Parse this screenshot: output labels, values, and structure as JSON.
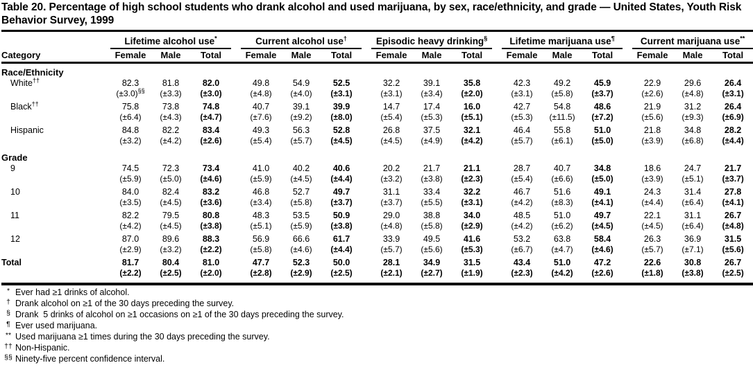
{
  "title": "Table 20. Percentage of high school students who drank alcohol and used marijuana, by sex, race/ethnicity, and grade — United States, Youth Risk Behavior Survey, 1999",
  "table": {
    "category_header": "Category",
    "sub_columns": [
      "Female",
      "Male",
      "Total"
    ],
    "groups": [
      {
        "label": "Lifetime alcohol use",
        "marker": "*"
      },
      {
        "label": "Current alcohol use",
        "marker": "†"
      },
      {
        "label": "Episodic heavy drinking",
        "marker": "§"
      },
      {
        "label": "Lifetime marijuana use",
        "marker": "¶"
      },
      {
        "label": "Current marijuana use",
        "marker": "**"
      }
    ],
    "sections": [
      {
        "heading": "Race/Ethnicity",
        "rows": [
          {
            "label": "White",
            "label_sup": "††",
            "ci_sup": "§§",
            "values": [
              "82.3",
              "81.8",
              "82.0",
              "49.8",
              "54.9",
              "52.5",
              "32.2",
              "39.1",
              "35.8",
              "42.3",
              "49.2",
              "45.9",
              "22.9",
              "29.6",
              "26.4"
            ],
            "ci": [
              "(±3.0)",
              "(±3.3)",
              "(±3.0)",
              "(±4.8)",
              "(±4.0)",
              "(±3.1)",
              "(±3.1)",
              "(±3.4)",
              "(±2.0)",
              "(±3.1)",
              "(±5.8)",
              "(±3.7)",
              "(±2.6)",
              "(±4.8)",
              "(±3.1)"
            ]
          },
          {
            "label": "Black",
            "label_sup": "††",
            "values": [
              "75.8",
              "73.8",
              "74.8",
              "40.7",
              "39.1",
              "39.9",
              "14.7",
              "17.4",
              "16.0",
              "42.7",
              "54.8",
              "48.6",
              "21.9",
              "31.2",
              "26.4"
            ],
            "ci": [
              "(±6.4)",
              "(±4.3)",
              "(±4.7)",
              "(±7.6)",
              "(±9.2)",
              "(±8.0)",
              "(±5.4)",
              "(±5.3)",
              "(±5.1)",
              "(±5.3)",
              "(±11.5)",
              "(±7.2)",
              "(±5.6)",
              "(±9.3)",
              "(±6.9)"
            ]
          },
          {
            "label": "Hispanic",
            "values": [
              "84.8",
              "82.2",
              "83.4",
              "49.3",
              "56.3",
              "52.8",
              "26.8",
              "37.5",
              "32.1",
              "46.4",
              "55.8",
              "51.0",
              "21.8",
              "34.8",
              "28.2"
            ],
            "ci": [
              "(±3.2)",
              "(±4.2)",
              "(±2.6)",
              "(±5.4)",
              "(±5.7)",
              "(±4.5)",
              "(±4.5)",
              "(±4.9)",
              "(±4.2)",
              "(±5.7)",
              "(±6.1)",
              "(±5.0)",
              "(±3.9)",
              "(±6.8)",
              "(±4.4)"
            ]
          }
        ]
      },
      {
        "heading": "Grade",
        "rows": [
          {
            "label": "9",
            "values": [
              "74.5",
              "72.3",
              "73.4",
              "41.0",
              "40.2",
              "40.6",
              "20.2",
              "21.7",
              "21.1",
              "28.7",
              "40.7",
              "34.8",
              "18.6",
              "24.7",
              "21.7"
            ],
            "ci": [
              "(±5.9)",
              "(±5.0)",
              "(±4.6)",
              "(±5.9)",
              "(±4.5)",
              "(±4.4)",
              "(±3.2)",
              "(±3.8)",
              "(±2.3)",
              "(±5.4)",
              "(±6.6)",
              "(±5.0)",
              "(±3.9)",
              "(±5.1)",
              "(±3.7)"
            ]
          },
          {
            "label": "10",
            "values": [
              "84.0",
              "82.4",
              "83.2",
              "46.8",
              "52.7",
              "49.7",
              "31.1",
              "33.4",
              "32.2",
              "46.7",
              "51.6",
              "49.1",
              "24.3",
              "31.4",
              "27.8"
            ],
            "ci": [
              "(±3.5)",
              "(±4.5)",
              "(±3.6)",
              "(±3.4)",
              "(±5.8)",
              "(±3.7)",
              "(±3.7)",
              "(±5.5)",
              "(±3.1)",
              "(±4.2)",
              "(±8.3)",
              "(±4.1)",
              "(±4.4)",
              "(±6.4)",
              "(±4.1)"
            ]
          },
          {
            "label": "11",
            "values": [
              "82.2",
              "79.5",
              "80.8",
              "48.3",
              "53.5",
              "50.9",
              "29.0",
              "38.8",
              "34.0",
              "48.5",
              "51.0",
              "49.7",
              "22.1",
              "31.1",
              "26.7"
            ],
            "ci": [
              "(±4.2)",
              "(±4.5)",
              "(±3.8)",
              "(±5.1)",
              "(±5.9)",
              "(±3.8)",
              "(±4.8)",
              "(±5.8)",
              "(±2.9)",
              "(±4.2)",
              "(±6.2)",
              "(±4.5)",
              "(±4.5)",
              "(±6.4)",
              "(±4.8)"
            ]
          },
          {
            "label": "12",
            "values": [
              "87.0",
              "89.6",
              "88.3",
              "56.9",
              "66.6",
              "61.7",
              "33.9",
              "49.5",
              "41.6",
              "53.2",
              "63.8",
              "58.4",
              "26.3",
              "36.9",
              "31.5"
            ],
            "ci": [
              "(±2.9)",
              "(±3.2)",
              "(±2.2)",
              "(±5.8)",
              "(±4.6)",
              "(±4.4)",
              "(±5.7)",
              "(±5.6)",
              "(±5.3)",
              "(±6.7)",
              "(±4.7)",
              "(±4.6)",
              "(±5.7)",
              "(±7.1)",
              "(±5.6)"
            ]
          }
        ]
      }
    ],
    "total_row": {
      "label": "Total",
      "values": [
        "81.7",
        "80.4",
        "81.0",
        "47.7",
        "52.3",
        "50.0",
        "28.1",
        "34.9",
        "31.5",
        "43.4",
        "51.0",
        "47.2",
        "22.6",
        "30.8",
        "26.7"
      ],
      "ci": [
        "(±2.2)",
        "(±2.5)",
        "(±2.0)",
        "(±2.8)",
        "(±2.9)",
        "(±2.5)",
        "(±2.1)",
        "(±2.7)",
        "(±1.9)",
        "(±2.3)",
        "(±4.2)",
        "(±2.6)",
        "(±1.8)",
        "(±3.8)",
        "(±2.5)"
      ]
    }
  },
  "footnotes": [
    {
      "marker": "*",
      "text": "Ever had ≥1 drinks of alcohol."
    },
    {
      "marker": "†",
      "text": "Drank alcohol on ≥1 of the 30 days preceding the survey."
    },
    {
      "marker": "§",
      "text": "Drank  5 drinks of alcohol on ≥1 occasions on ≥1 of the 30 days preceding the survey."
    },
    {
      "marker": "¶",
      "text": "Ever used marijuana."
    },
    {
      "marker": "**",
      "text": "Used marijuana ≥1 times during the 30 days preceding the survey."
    },
    {
      "marker": "††",
      "text": "Non-Hispanic."
    },
    {
      "marker": "§§",
      "text": "Ninety-five percent confidence interval."
    }
  ]
}
